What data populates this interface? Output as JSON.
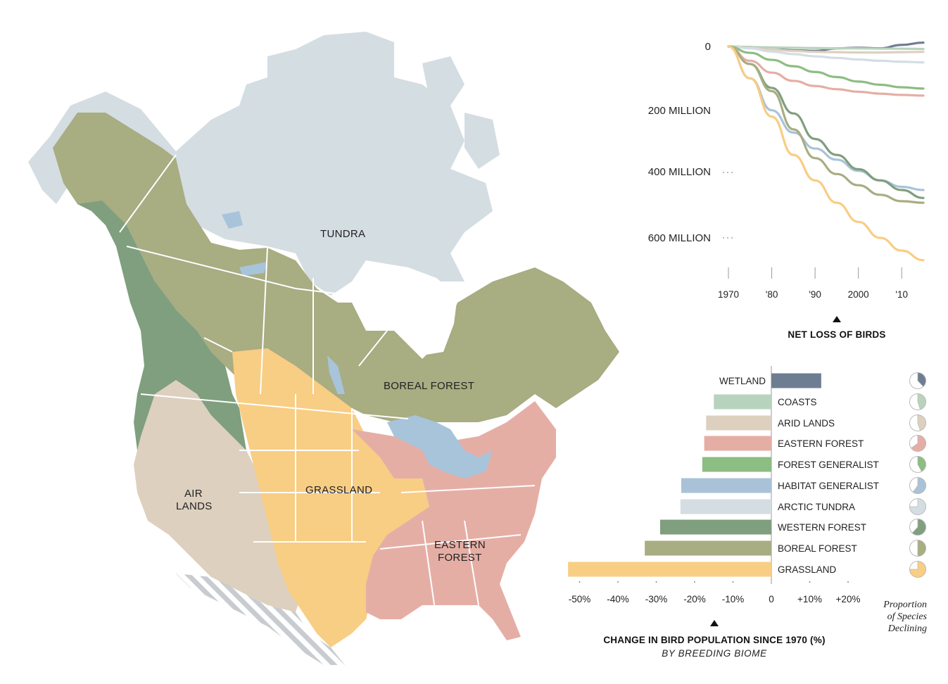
{
  "colors": {
    "tundra": "#d4dde2",
    "boreal": "#a8ad82",
    "western": "#7f9f7f",
    "grassland": "#f8cd84",
    "eastern": "#e5aea5",
    "arid": "#ddd0bf",
    "water": "#a8c4db",
    "wetland": "#6f7d93",
    "coasts": "#b8d3bd",
    "habitat": "#a9c2d8",
    "forest_gen": "#8cbd82"
  },
  "map": {
    "labels": {
      "tundra": "TUNDRA",
      "boreal": "BOREAL FOREST",
      "grassland": "GRASSLAND",
      "air_lands_1": "AIR",
      "air_lands_2": "LANDS",
      "eastern_1": "EASTERN",
      "eastern_2": "FOREST"
    }
  },
  "line_chart": {
    "y_labels": [
      "0",
      "200 MILLION",
      "400 MILLION",
      "600 MILLION"
    ],
    "x_labels": [
      "1970",
      "'80",
      "'90",
      "2000",
      "'10"
    ],
    "caption": "NET LOSS OF BIRDS"
  },
  "bar_chart": {
    "caption": "CHANGE IN BIRD POPULATION SINCE 1970 (%)",
    "subcaption": "BY BREEDING BIOME",
    "pie_caption": [
      "Proportion",
      "of Species",
      "Declining"
    ],
    "x_labels": [
      "-50%",
      "-40%",
      "-30%",
      "-20%",
      "-10%",
      "0",
      "+10%",
      "+20%"
    ]
  },
  "chart_data": [
    {
      "type": "line",
      "caption": "NET LOSS OF BIRDS",
      "x": [
        1970,
        1975,
        1980,
        1985,
        1990,
        1995,
        2000,
        2005,
        2010,
        2015
      ],
      "ylim": [
        -650,
        10
      ],
      "y_unit": "million birds",
      "series": [
        {
          "name": "WETLAND",
          "color": "#6f7d93",
          "values": [
            0,
            -2,
            -8,
            -12,
            -14,
            -6,
            -4,
            -6,
            5,
            12
          ]
        },
        {
          "name": "COASTS",
          "color": "#b8d3bd",
          "values": [
            0,
            -2,
            -3,
            -4,
            -5,
            -6,
            -6,
            -7,
            -7,
            -8
          ]
        },
        {
          "name": "ARID LANDS",
          "color": "#ddd0bf",
          "values": [
            0,
            -5,
            -10,
            -14,
            -17,
            -18,
            -19,
            -19,
            -18,
            -17
          ]
        },
        {
          "name": "ARCTIC TUNDRA",
          "color": "#d4dde2",
          "values": [
            0,
            -6,
            -16,
            -24,
            -31,
            -36,
            -41,
            -45,
            -48,
            -50
          ]
        },
        {
          "name": "FOREST GENERALIST",
          "color": "#8cbd82",
          "values": [
            0,
            -20,
            -42,
            -62,
            -80,
            -96,
            -110,
            -120,
            -128,
            -132
          ]
        },
        {
          "name": "EASTERN FOREST",
          "color": "#e5aea5",
          "values": [
            0,
            -45,
            -82,
            -108,
            -124,
            -134,
            -142,
            -148,
            -152,
            -154
          ]
        },
        {
          "name": "HABITAT GENERALIST",
          "color": "#a9c2d8",
          "values": [
            0,
            -100,
            -200,
            -270,
            -320,
            -355,
            -390,
            -420,
            -440,
            -450
          ]
        },
        {
          "name": "WESTERN FOREST",
          "color": "#7f9f7f",
          "values": [
            0,
            -55,
            -130,
            -210,
            -290,
            -340,
            -385,
            -420,
            -450,
            -475
          ]
        },
        {
          "name": "BOREAL FOREST",
          "color": "#a8ad82",
          "values": [
            0,
            -55,
            -140,
            -260,
            -350,
            -400,
            -435,
            -465,
            -485,
            -490
          ]
        },
        {
          "name": "GRASSLAND",
          "color": "#f8cd84",
          "values": [
            0,
            -100,
            -220,
            -340,
            -420,
            -490,
            -550,
            -600,
            -640,
            -670
          ]
        }
      ]
    },
    {
      "type": "bar",
      "caption": "CHANGE IN BIRD POPULATION SINCE 1970 (%)",
      "subcaption": "BY BREEDING BIOME",
      "xlim": [
        -53,
        22
      ],
      "categories": [
        "WETLAND",
        "COASTS",
        "ARID LANDS",
        "EASTERN FOREST",
        "FOREST GENERALIST",
        "HABITAT GENERALIST",
        "ARCTIC TUNDRA",
        "WESTERN FOREST",
        "BOREAL FOREST",
        "GRASSLAND"
      ],
      "values": [
        13,
        -15,
        -17,
        -17.5,
        -18,
        -23.5,
        -23.7,
        -29,
        -33,
        -53
      ],
      "colors": [
        "#6f7d93",
        "#b8d3bd",
        "#ddd0bf",
        "#e5aea5",
        "#8cbd82",
        "#a9c2d8",
        "#d4dde2",
        "#7f9f7f",
        "#a8ad82",
        "#f8cd84"
      ],
      "proportion_declining": [
        0.38,
        0.45,
        0.45,
        0.65,
        0.42,
        0.6,
        0.75,
        0.62,
        0.5,
        0.75
      ]
    }
  ]
}
